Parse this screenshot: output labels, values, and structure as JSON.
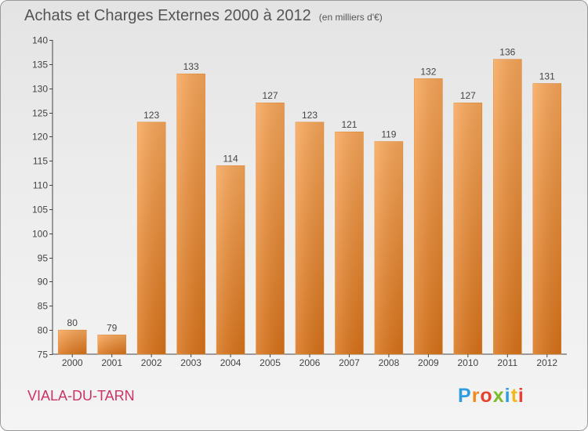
{
  "header": {
    "title": "Achats et Charges Externes 2000 à 2012",
    "unit": "(en milliers d'€)"
  },
  "footer": {
    "commune": "VIALA-DU-TARN",
    "logo": [
      {
        "ch": "P",
        "color": "#2f9be0"
      },
      {
        "ch": "r",
        "color": "#f08a1c"
      },
      {
        "ch": "o",
        "color": "#e8412e"
      },
      {
        "ch": "x",
        "color": "#7dbb2c"
      },
      {
        "ch": "i",
        "color": "#2f9be0"
      },
      {
        "ch": "t",
        "color": "#f0b81c"
      },
      {
        "ch": "i",
        "color": "#e8412e"
      }
    ]
  },
  "chart_data": {
    "type": "bar",
    "categories": [
      "2000",
      "2001",
      "2002",
      "2003",
      "2004",
      "2005",
      "2006",
      "2007",
      "2008",
      "2009",
      "2010",
      "2011",
      "2012"
    ],
    "values": [
      80,
      79,
      123,
      133,
      114,
      127,
      123,
      121,
      119,
      132,
      127,
      136,
      131
    ],
    "title": "Achats et Charges Externes 2000 à 2012",
    "ylim": [
      75,
      140
    ],
    "yticks": [
      75,
      80,
      85,
      90,
      95,
      100,
      105,
      110,
      115,
      120,
      125,
      130,
      135,
      140
    ],
    "grid": false,
    "bar_color": "#f0932e",
    "bar_color_light": "#f8a75a",
    "bar_color_dark": "#d9731a"
  }
}
